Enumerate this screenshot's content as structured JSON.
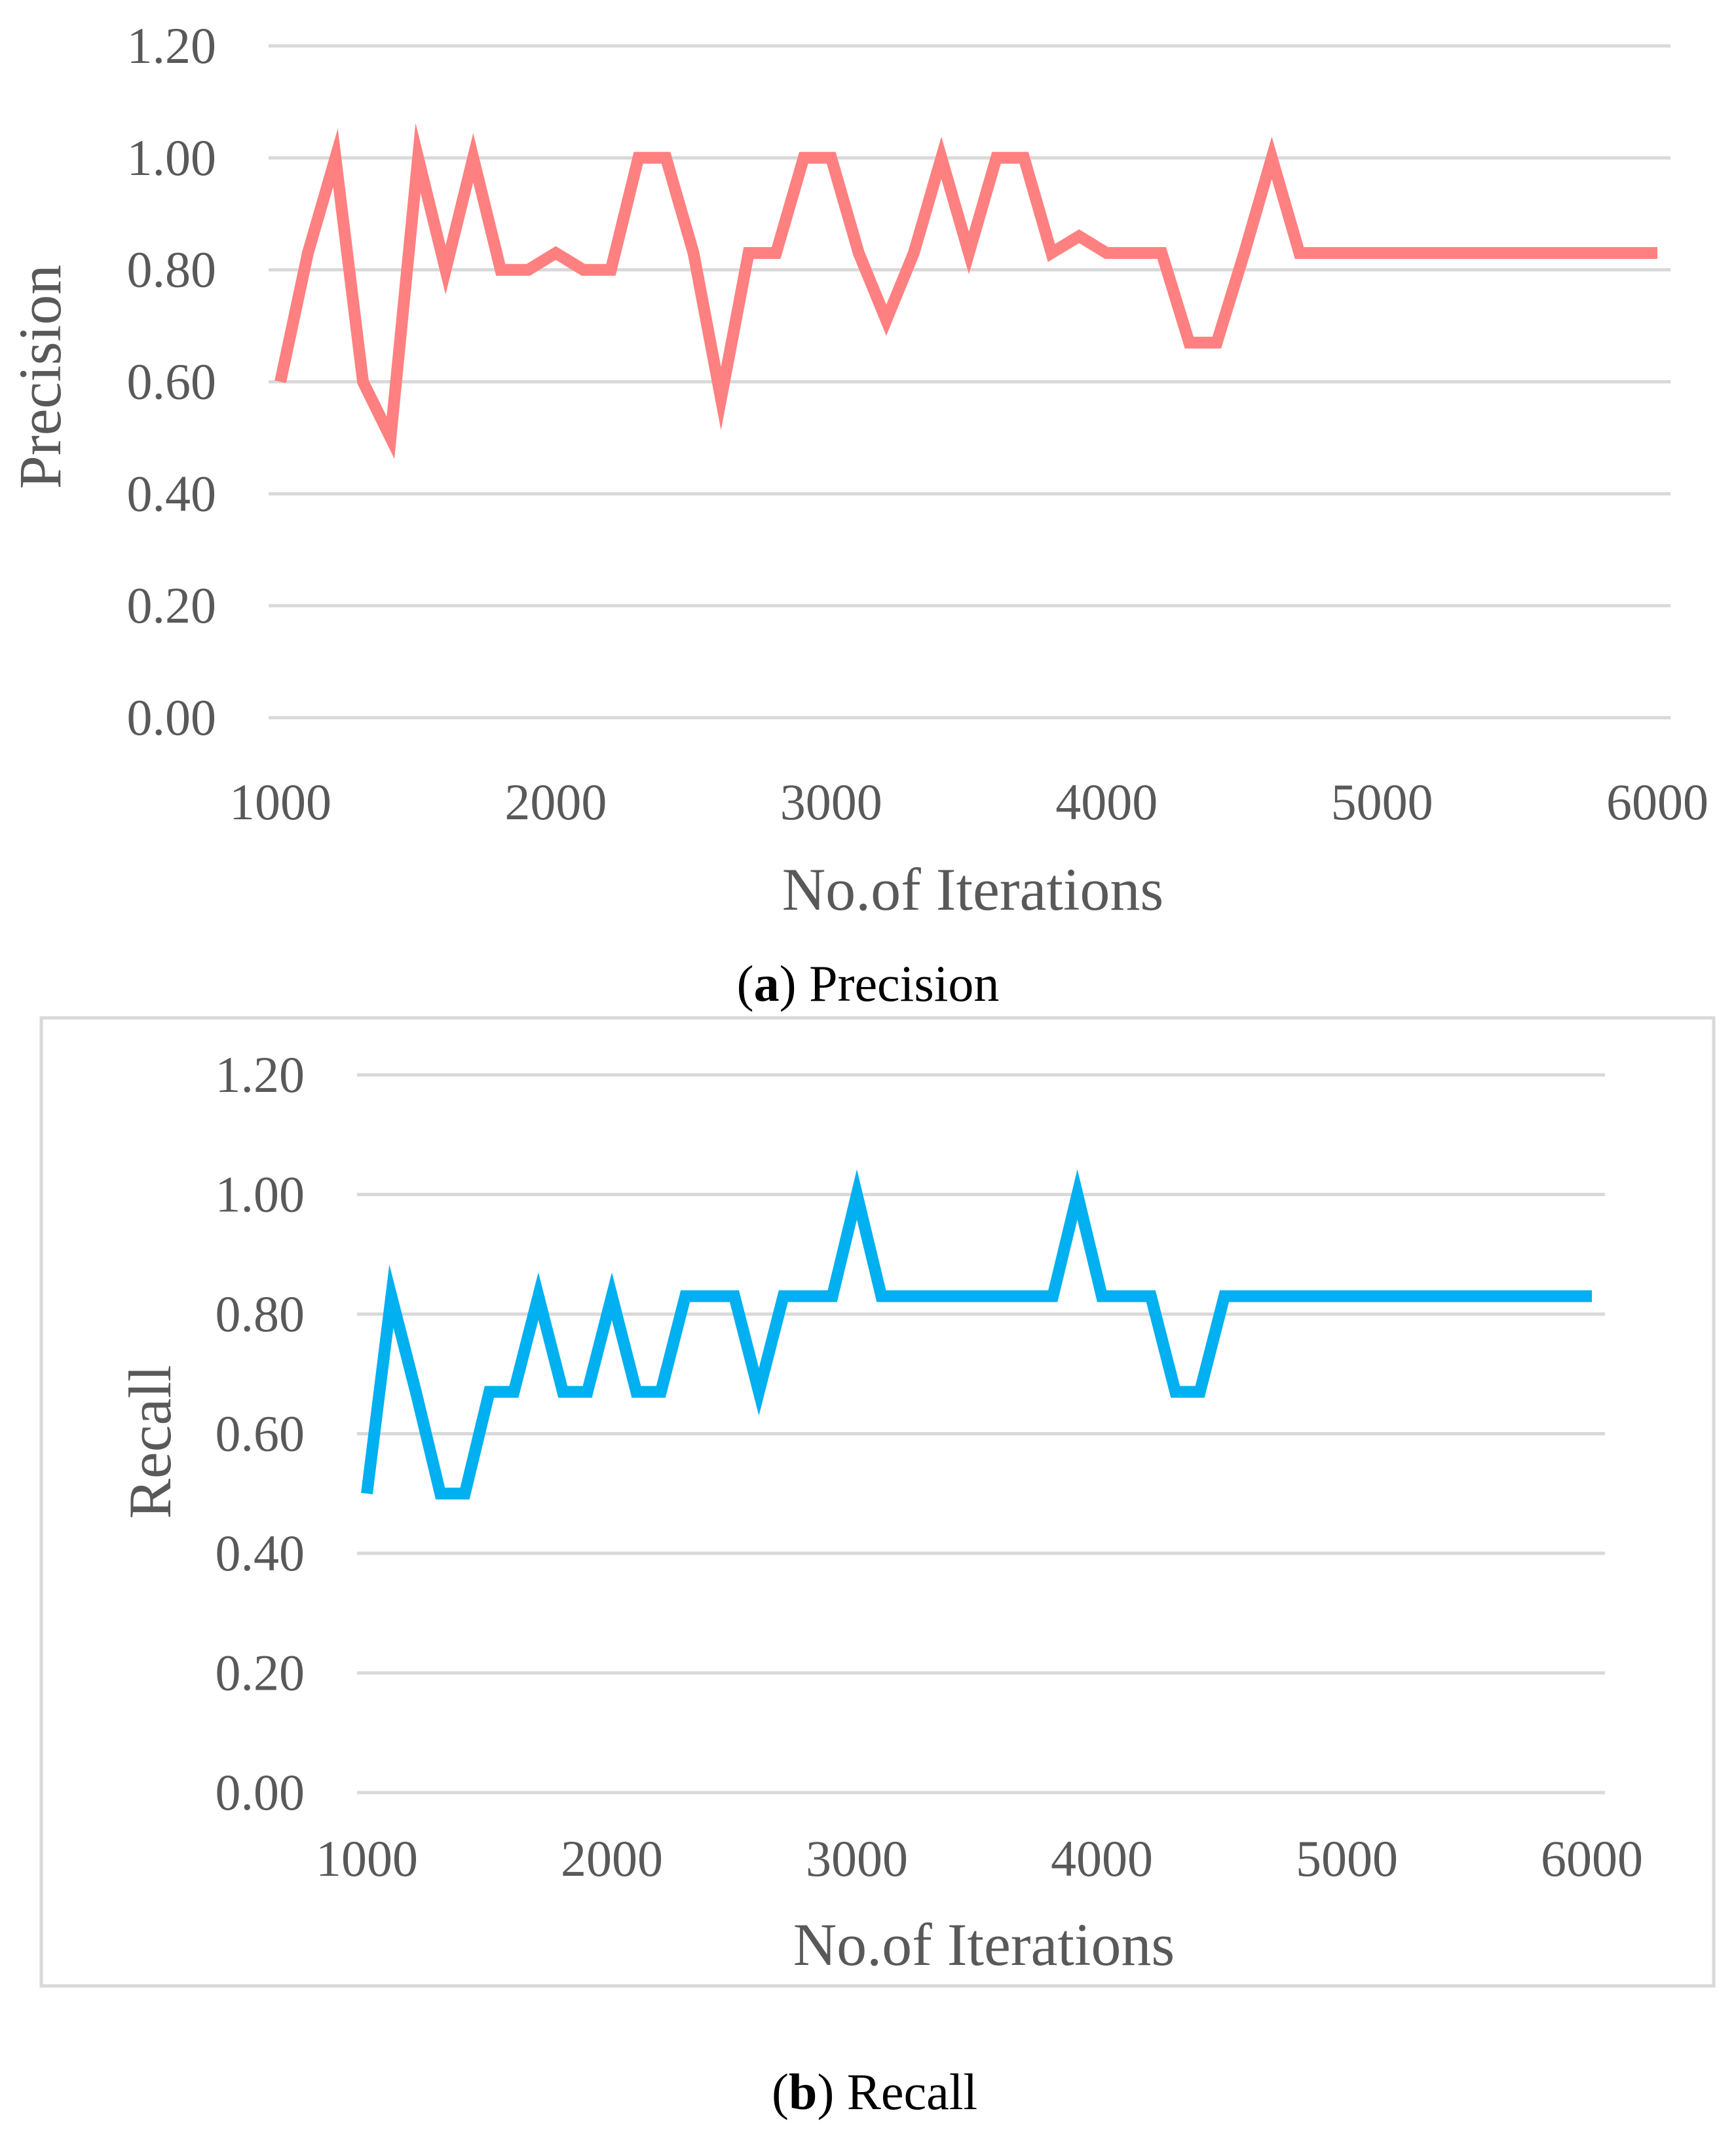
{
  "chart_data": [
    {
      "type": "line",
      "id": "precision",
      "caption_letter": "a",
      "caption_text": ") Precision",
      "caption_open": "(",
      "xlabel": "No.of Iterations",
      "ylabel": "Precision",
      "xlim": [
        1000,
        6000
      ],
      "ylim": [
        0,
        1.2
      ],
      "x_ticks": [
        "1000",
        "2000",
        "3000",
        "4000",
        "5000",
        "6000"
      ],
      "y_ticks": [
        "0.00",
        "0.20",
        "0.40",
        "0.60",
        "0.80",
        "1.00",
        "1.20"
      ],
      "color": "#ff8080",
      "series": [
        {
          "name": "Precision",
          "x": [
            1000,
            1100,
            1200,
            1300,
            1400,
            1500,
            1600,
            1700,
            1800,
            1900,
            2000,
            2100,
            2200,
            2300,
            2400,
            2500,
            2600,
            2700,
            2800,
            2900,
            3000,
            3100,
            3200,
            3300,
            3400,
            3500,
            3600,
            3700,
            3800,
            3900,
            4000,
            4100,
            4200,
            4300,
            4400,
            4500,
            4600,
            4700,
            4800,
            4900,
            5000,
            5100,
            5200,
            5300,
            5400,
            5500,
            5600,
            5700,
            5800,
            5900,
            6000
          ],
          "values": [
            0.6,
            0.83,
            1.0,
            0.6,
            0.5,
            1.0,
            0.8,
            1.0,
            0.8,
            0.8,
            0.83,
            0.8,
            0.8,
            1.0,
            1.0,
            0.83,
            0.57,
            0.83,
            0.83,
            1.0,
            1.0,
            0.83,
            0.71,
            0.83,
            1.0,
            0.83,
            1.0,
            1.0,
            0.83,
            0.86,
            0.83,
            0.83,
            0.83,
            0.67,
            0.67,
            0.83,
            1.0,
            0.83,
            0.83,
            0.83,
            0.83,
            0.83,
            0.83,
            0.83,
            0.83,
            0.83,
            0.83,
            0.83,
            0.83,
            0.83,
            0.83
          ]
        }
      ]
    },
    {
      "type": "line",
      "id": "recall",
      "caption_letter": "b",
      "caption_text": ") Recall",
      "caption_open": "(",
      "xlabel": "No.of Iterations",
      "ylabel": "Recall",
      "xlim": [
        1000,
        6000
      ],
      "ylim": [
        0,
        1.2
      ],
      "x_ticks": [
        "1000",
        "2000",
        "3000",
        "4000",
        "5000",
        "6000"
      ],
      "y_ticks": [
        "0.00",
        "0.20",
        "0.40",
        "0.60",
        "0.80",
        "1.00",
        "1.20"
      ],
      "color": "#00b0f0",
      "series": [
        {
          "name": "Recall",
          "x": [
            1000,
            1100,
            1200,
            1300,
            1400,
            1500,
            1600,
            1700,
            1800,
            1900,
            2000,
            2100,
            2200,
            2300,
            2400,
            2500,
            2600,
            2700,
            2800,
            2900,
            3000,
            3100,
            3200,
            3300,
            3400,
            3500,
            3600,
            3700,
            3800,
            3900,
            4000,
            4100,
            4200,
            4300,
            4400,
            4500,
            4600,
            4700,
            4800,
            4900,
            5000,
            5100,
            5200,
            5300,
            5400,
            5500,
            5600,
            5700,
            5800,
            5900,
            6000
          ],
          "values": [
            0.5,
            0.83,
            0.67,
            0.5,
            0.5,
            0.67,
            0.67,
            0.83,
            0.67,
            0.67,
            0.83,
            0.67,
            0.67,
            0.83,
            0.83,
            0.83,
            0.67,
            0.83,
            0.83,
            0.83,
            1.0,
            0.83,
            0.83,
            0.83,
            0.83,
            0.83,
            0.83,
            0.83,
            0.83,
            1.0,
            0.83,
            0.83,
            0.83,
            0.67,
            0.67,
            0.83,
            0.83,
            0.83,
            0.83,
            0.83,
            0.83,
            0.83,
            0.83,
            0.83,
            0.83,
            0.83,
            0.83,
            0.83,
            0.83,
            0.83,
            0.83
          ]
        }
      ]
    }
  ]
}
